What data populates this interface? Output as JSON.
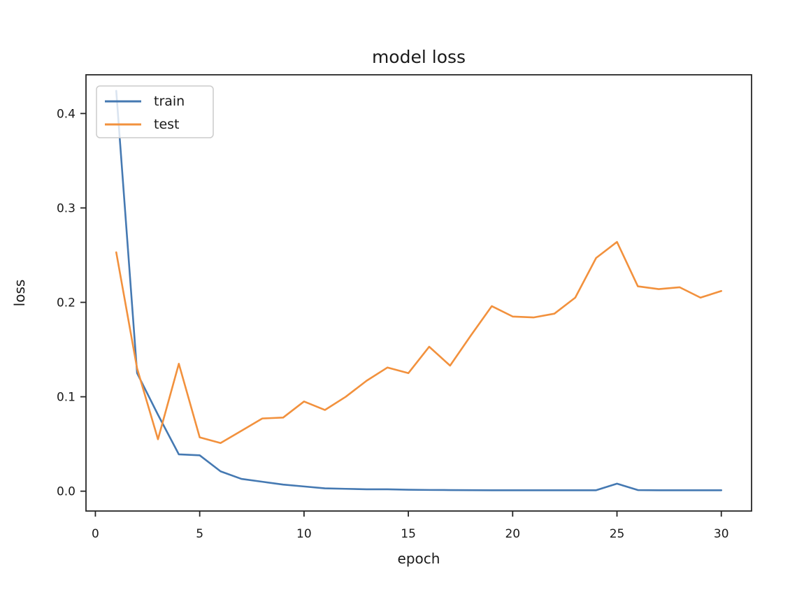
{
  "figure": {
    "background": "#ffffff"
  },
  "chart_data": {
    "type": "line",
    "title": "model loss",
    "xlabel": "epoch",
    "ylabel": "loss",
    "x": [
      1,
      2,
      3,
      4,
      5,
      6,
      7,
      8,
      9,
      10,
      11,
      12,
      13,
      14,
      15,
      16,
      17,
      18,
      19,
      20,
      21,
      22,
      23,
      24,
      25,
      26,
      27,
      28,
      29,
      30
    ],
    "series": [
      {
        "name": "train",
        "color": "#4579b2",
        "values": [
          0.424,
          0.125,
          0.081,
          0.039,
          0.038,
          0.021,
          0.013,
          0.01,
          0.007,
          0.005,
          0.003,
          0.0025,
          0.002,
          0.002,
          0.0015,
          0.0013,
          0.0012,
          0.0011,
          0.001,
          0.001,
          0.001,
          0.001,
          0.001,
          0.001,
          0.008,
          0.0012,
          0.001,
          0.001,
          0.001,
          0.001
        ]
      },
      {
        "name": "test",
        "color": "#f2913d",
        "values": [
          0.253,
          0.13,
          0.055,
          0.135,
          0.057,
          0.051,
          0.064,
          0.077,
          0.078,
          0.095,
          0.086,
          0.1,
          0.117,
          0.131,
          0.125,
          0.153,
          0.133,
          0.165,
          0.196,
          0.185,
          0.184,
          0.188,
          0.205,
          0.247,
          0.264,
          0.217,
          0.214,
          0.216,
          0.205,
          0.212
        ]
      }
    ],
    "xticks": [
      0,
      5,
      10,
      15,
      20,
      25,
      30
    ],
    "xtick_labels": [
      "0",
      "5",
      "10",
      "15",
      "20",
      "25",
      "30"
    ],
    "yticks": [
      0,
      0.1,
      0.2,
      0.3,
      0.4
    ],
    "ytick_labels": [
      "0.0",
      "0.1",
      "0.2",
      "0.3",
      "0.4"
    ],
    "xlim": [
      -0.45,
      31.45
    ],
    "ylim": [
      -0.021,
      0.441
    ],
    "grid": false,
    "legend_position": "upper left",
    "legend_entries": [
      "train",
      "test"
    ],
    "axis_color": "#262626",
    "text_color": "#1a1a1a"
  }
}
